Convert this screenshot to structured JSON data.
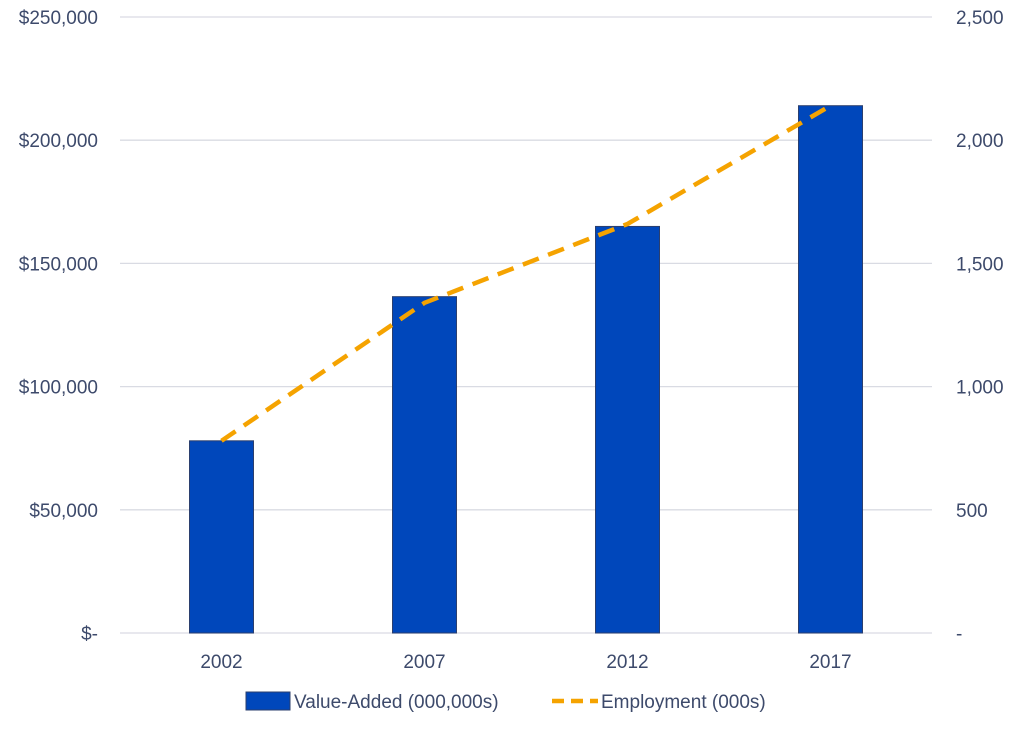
{
  "chart_data": {
    "type": "bar",
    "categories": [
      "2002",
      "2007",
      "2012",
      "2017"
    ],
    "series": [
      {
        "name": "Value-Added (000,000s)",
        "type": "bar",
        "axis": "left",
        "values": [
          78000,
          136500,
          165000,
          214000
        ],
        "color": "#0047bb"
      },
      {
        "name": "Employment (000s)",
        "type": "line",
        "style": "dashed",
        "axis": "right",
        "values": [
          780,
          1340,
          1660,
          2140
        ],
        "color": "#f5a300"
      }
    ],
    "y_left": {
      "ylim": [
        0,
        250000
      ],
      "ticks": [
        0,
        50000,
        100000,
        150000,
        200000,
        250000
      ],
      "tick_labels": [
        "$-",
        "$50,000",
        "$100,000",
        "$150,000",
        "$200,000",
        "$250,000"
      ]
    },
    "y_right": {
      "ylim": [
        0,
        2500
      ],
      "ticks": [
        0,
        500,
        1000,
        1500,
        2000,
        2500
      ],
      "tick_labels": [
        "-",
        "500",
        "1,000",
        "1,500",
        "2,000",
        "2,500"
      ]
    },
    "title": "",
    "xlabel": "",
    "grid": true,
    "legend_position": "bottom"
  },
  "colors": {
    "gridline": "#d9dbe3",
    "axis_text": "#3d4a6b",
    "bar_edge": "#2b3f6e"
  }
}
